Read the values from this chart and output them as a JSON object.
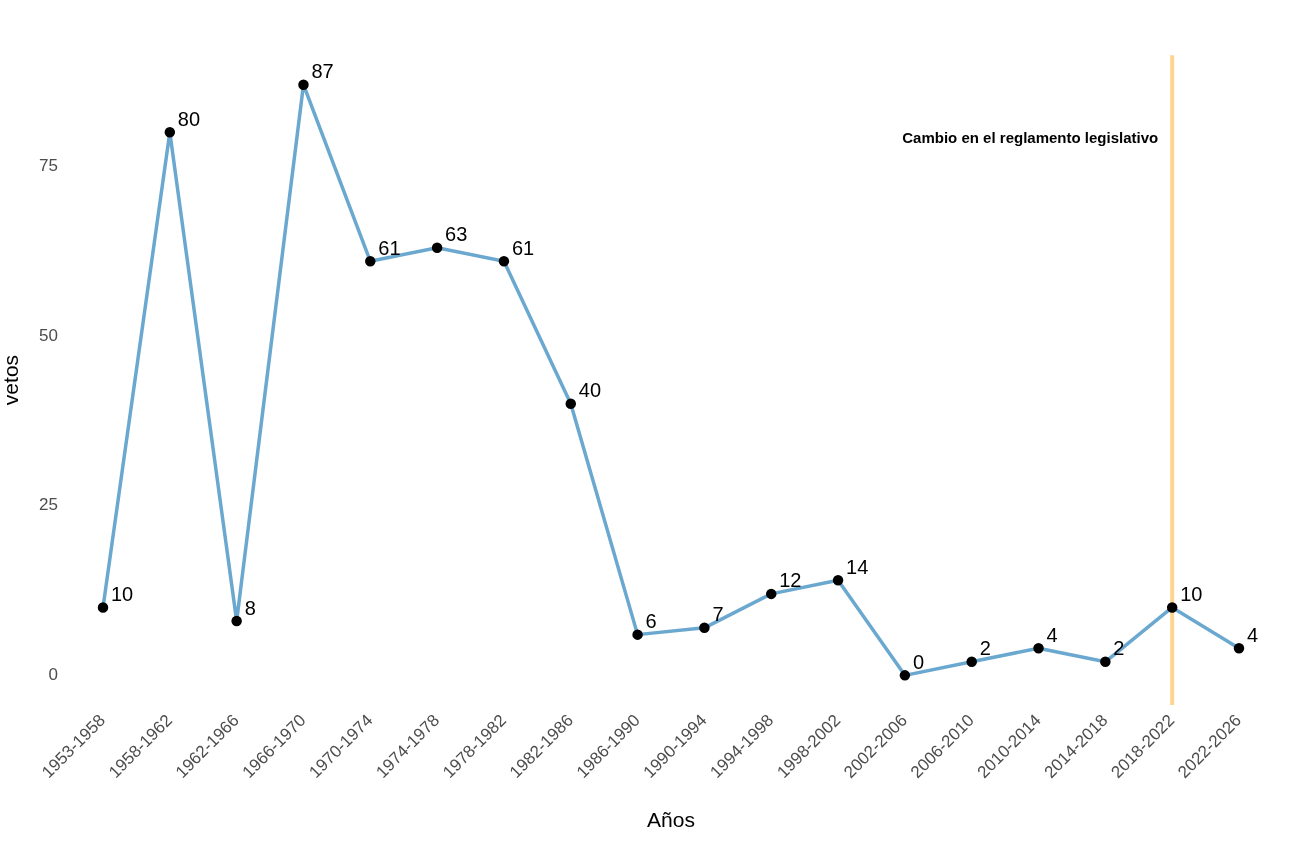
{
  "chart_data": {
    "type": "line",
    "xlabel": "Años",
    "ylabel": "vetos",
    "categories": [
      "1953-1958",
      "1958-1962",
      "1962-1966",
      "1966-1970",
      "1970-1974",
      "1974-1978",
      "1978-1982",
      "1982-1986",
      "1986-1990",
      "1990-1994",
      "1994-1998",
      "1998-2002",
      "2002-2006",
      "2006-2010",
      "2010-2014",
      "2014-2018",
      "2018-2022",
      "2022-2026"
    ],
    "series": [
      {
        "color": "#6aa8d0",
        "values": [
          10,
          80,
          8,
          87,
          61,
          63,
          61,
          40,
          6,
          7,
          12,
          14,
          0,
          2,
          4,
          2,
          10,
          4
        ]
      }
    ],
    "ylim": [
      -4.35,
      91.35
    ],
    "yticks": [
      0,
      25,
      50,
      75
    ],
    "ref_lines": [
      {
        "axis": "x",
        "value": "2018-2022",
        "label": "Cambio en el reglamento legislativo",
        "color": "#fdd58f"
      }
    ],
    "data_labels": true,
    "marker": "circle",
    "grid": false,
    "legend": false
  }
}
